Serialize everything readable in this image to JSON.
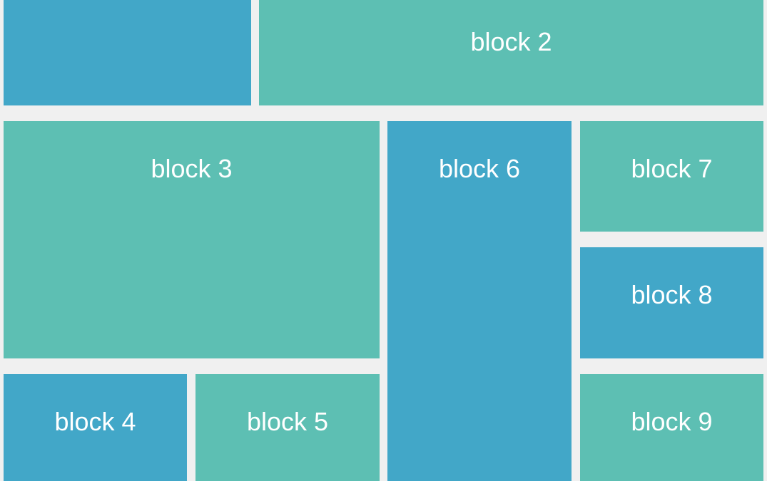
{
  "colors": {
    "teal": "#5dbfb3",
    "blue": "#42a7c8",
    "background": "#f0f0f0"
  },
  "blocks": [
    {
      "label": "",
      "color": "blue"
    },
    {
      "label": "block 2",
      "color": "teal"
    },
    {
      "label": "block 3",
      "color": "teal"
    },
    {
      "label": "block 4",
      "color": "blue"
    },
    {
      "label": "block 5",
      "color": "teal"
    },
    {
      "label": "block 6",
      "color": "blue"
    },
    {
      "label": "block 7",
      "color": "teal"
    },
    {
      "label": "block 8",
      "color": "blue"
    },
    {
      "label": "block 9",
      "color": "teal"
    }
  ]
}
